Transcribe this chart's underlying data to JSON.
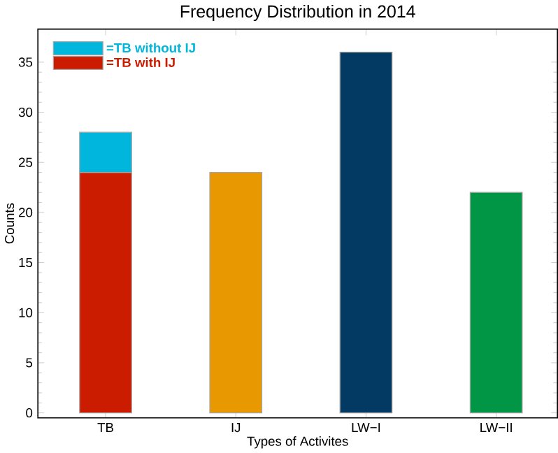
{
  "chart_data": {
    "type": "bar",
    "title": "Frequency Distribution in 2014",
    "xlabel": "Types of Activites",
    "ylabel": "Counts",
    "categories": [
      "TB",
      "IJ",
      "LW−I",
      "LW−II"
    ],
    "stacked": true,
    "legend": "top left",
    "ylim": [
      -0.5,
      38.3
    ],
    "yticks": [
      0,
      5,
      10,
      15,
      20,
      25,
      30,
      35
    ],
    "series": [
      {
        "name": "=TB with IJ",
        "color": "#cc1c00",
        "values": [
          24,
          null,
          null,
          null
        ]
      },
      {
        "name": "=TB without IJ",
        "color": "#00b6dc",
        "values": [
          4,
          null,
          null,
          null
        ]
      },
      {
        "colors": [
          "#cc1c00",
          "#e89800",
          "#023a63",
          "#009645"
        ],
        "values": [
          null,
          24,
          36,
          22
        ]
      }
    ]
  }
}
